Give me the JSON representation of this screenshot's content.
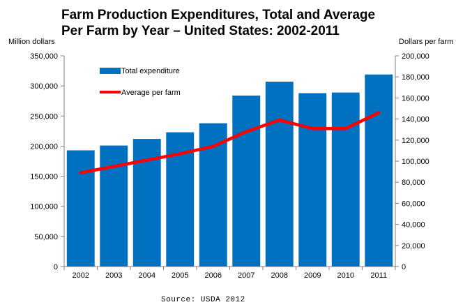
{
  "chart_data": {
    "type": "bar",
    "title_line1": "Farm Production Expenditures, Total and Average",
    "title_line2": "Per Farm by Year – United States: 2002-2011",
    "ylabel": "Million dollars",
    "y2label": "Dollars per farm",
    "categories": [
      "2002",
      "2003",
      "2004",
      "2005",
      "2006",
      "2007",
      "2008",
      "2009",
      "2010",
      "2011"
    ],
    "series": [
      {
        "name": "Total expenditure",
        "type": "bar",
        "axis": "left",
        "color": "#0070C0",
        "values": [
          193000,
          201000,
          212000,
          223000,
          238000,
          284000,
          307000,
          288000,
          289000,
          319000
        ]
      },
      {
        "name": "Average per farm",
        "type": "line",
        "axis": "right",
        "color": "#FF0000",
        "values": [
          89000,
          95000,
          101000,
          107000,
          114000,
          128000,
          139000,
          131000,
          131000,
          146000
        ]
      }
    ],
    "ylim": [
      0,
      350000
    ],
    "y2lim": [
      0,
      200000
    ],
    "yticks": [
      "0",
      "50,000",
      "100,000",
      "150,000",
      "200,000",
      "250,000",
      "300,000",
      "350,000"
    ],
    "y2ticks": [
      "0",
      "20,000",
      "40,000",
      "60,000",
      "80,000",
      "100,000",
      "120,000",
      "140,000",
      "160,000",
      "180,000",
      "200,000"
    ],
    "legend_position": "top-left",
    "grid": false,
    "source": "Source: USDA 2012"
  }
}
